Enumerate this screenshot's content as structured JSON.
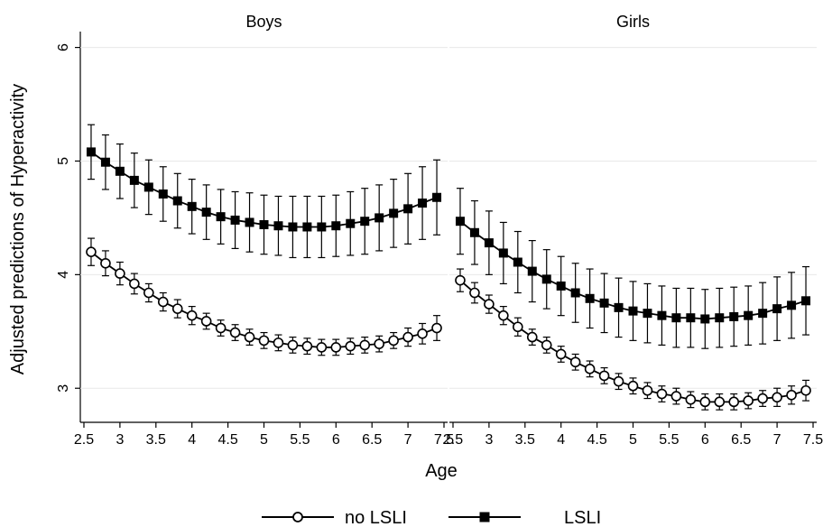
{
  "chart_data": {
    "type": "line",
    "ylabel": "Adjusted predictions of Hyperactivity",
    "xlabel": "Age",
    "ylim": [
      2.7,
      6.1
    ],
    "xlim": [
      2.45,
      7.55
    ],
    "x_ticks": [
      "2.5",
      "3",
      "3.5",
      "4",
      "4.5",
      "5",
      "5.5",
      "6",
      "6.5",
      "7",
      "7.5"
    ],
    "y_ticks": [
      "3",
      "4",
      "5",
      "6"
    ],
    "grid": true,
    "legend": {
      "position": "bottom",
      "entries": [
        "no LSLI",
        "LSLI"
      ]
    },
    "x": [
      2.6,
      2.8,
      3.0,
      3.2,
      3.4,
      3.6,
      3.8,
      4.0,
      4.2,
      4.4,
      4.6,
      4.8,
      5.0,
      5.2,
      5.4,
      5.6,
      5.8,
      6.0,
      6.2,
      6.4,
      6.6,
      6.8,
      7.0,
      7.2,
      7.4
    ],
    "panels": [
      {
        "title": "Boys",
        "series": [
          {
            "name": "no LSLI",
            "marker": "hollow-circle",
            "values": [
              4.2,
              4.1,
              4.01,
              3.92,
              3.84,
              3.76,
              3.7,
              3.64,
              3.59,
              3.53,
              3.49,
              3.45,
              3.42,
              3.4,
              3.38,
              3.37,
              3.36,
              3.36,
              3.37,
              3.38,
              3.39,
              3.42,
              3.45,
              3.48,
              3.53
            ],
            "ci_halfwidth": [
              0.12,
              0.11,
              0.1,
              0.09,
              0.08,
              0.08,
              0.08,
              0.08,
              0.07,
              0.07,
              0.07,
              0.07,
              0.07,
              0.07,
              0.07,
              0.07,
              0.07,
              0.07,
              0.07,
              0.07,
              0.07,
              0.07,
              0.08,
              0.09,
              0.11
            ]
          },
          {
            "name": "LSLI",
            "marker": "filled-square",
            "values": [
              5.08,
              4.99,
              4.91,
              4.83,
              4.77,
              4.71,
              4.65,
              4.6,
              4.55,
              4.51,
              4.48,
              4.46,
              4.44,
              4.43,
              4.42,
              4.42,
              4.42,
              4.43,
              4.45,
              4.47,
              4.5,
              4.54,
              4.58,
              4.63,
              4.68
            ],
            "ci_halfwidth": [
              0.24,
              0.24,
              0.24,
              0.24,
              0.24,
              0.24,
              0.24,
              0.24,
              0.24,
              0.24,
              0.25,
              0.26,
              0.26,
              0.26,
              0.27,
              0.27,
              0.27,
              0.27,
              0.28,
              0.29,
              0.29,
              0.3,
              0.31,
              0.32,
              0.33
            ]
          }
        ]
      },
      {
        "title": "Girls",
        "series": [
          {
            "name": "no LSLI",
            "marker": "hollow-circle",
            "values": [
              3.95,
              3.84,
              3.74,
              3.64,
              3.54,
              3.45,
              3.38,
              3.3,
              3.23,
              3.17,
              3.11,
              3.06,
              3.02,
              2.98,
              2.95,
              2.93,
              2.9,
              2.88,
              2.88,
              2.88,
              2.89,
              2.91,
              2.92,
              2.94,
              2.98
            ],
            "ci_halfwidth": [
              0.1,
              0.09,
              0.08,
              0.08,
              0.08,
              0.07,
              0.07,
              0.07,
              0.07,
              0.07,
              0.07,
              0.07,
              0.07,
              0.07,
              0.07,
              0.07,
              0.07,
              0.07,
              0.07,
              0.07,
              0.07,
              0.07,
              0.08,
              0.08,
              0.09
            ]
          },
          {
            "name": "LSLI",
            "marker": "filled-square",
            "values": [
              4.47,
              4.37,
              4.28,
              4.19,
              4.11,
              4.03,
              3.96,
              3.9,
              3.84,
              3.79,
              3.75,
              3.71,
              3.68,
              3.66,
              3.64,
              3.62,
              3.62,
              3.61,
              3.62,
              3.63,
              3.64,
              3.66,
              3.7,
              3.73,
              3.77
            ],
            "ci_halfwidth": [
              0.29,
              0.28,
              0.28,
              0.27,
              0.27,
              0.27,
              0.26,
              0.26,
              0.26,
              0.26,
              0.26,
              0.26,
              0.26,
              0.26,
              0.26,
              0.26,
              0.26,
              0.26,
              0.26,
              0.26,
              0.26,
              0.27,
              0.28,
              0.29,
              0.3
            ]
          }
        ]
      }
    ]
  }
}
